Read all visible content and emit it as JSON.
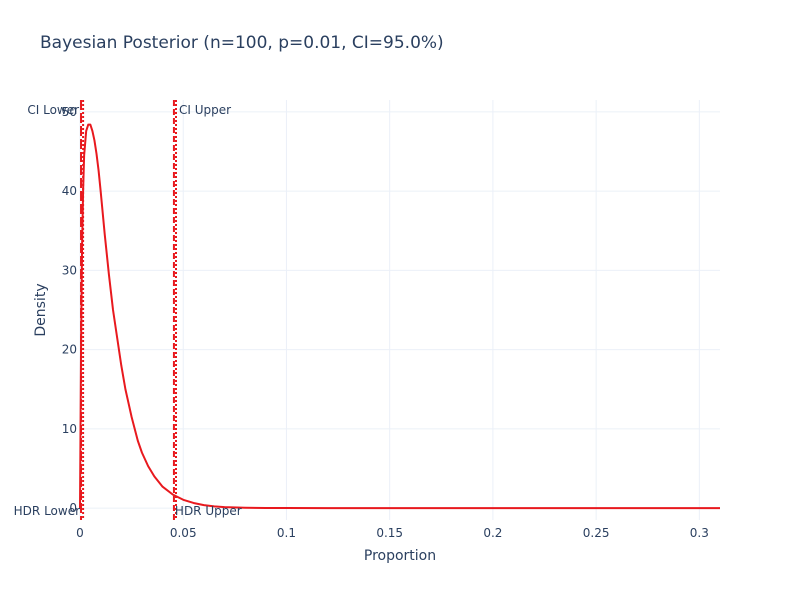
{
  "chart_data": {
    "type": "line",
    "title": "Bayesian Posterior (n=100, p=0.01, CI=95.0%)",
    "xlabel": "Proportion",
    "ylabel": "Density",
    "xlim": [
      0,
      0.31
    ],
    "ylim": [
      -1.5,
      51.5
    ],
    "x_ticks": [
      0,
      0.05,
      0.1,
      0.15,
      0.2,
      0.25,
      0.3
    ],
    "x_tick_labels": [
      "0",
      "0.05",
      "0.1",
      "0.15",
      "0.2",
      "0.25",
      "0.3"
    ],
    "y_ticks": [
      0,
      10,
      20,
      30,
      40,
      50
    ],
    "y_tick_labels": [
      "0",
      "10",
      "20",
      "30",
      "40",
      "50"
    ],
    "grid": true,
    "legend": "none",
    "colors": {
      "curve": "#e8191e",
      "vline": "#e8191e",
      "grid": "#ebf0f8",
      "text": "#2a3f5f"
    },
    "series": [
      {
        "x": [
          0,
          0.0005,
          0.001,
          0.0015,
          0.002,
          0.003,
          0.004,
          0.005,
          0.006,
          0.007,
          0.008,
          0.009,
          0.01,
          0.012,
          0.014,
          0.016,
          0.018,
          0.02,
          0.022,
          0.025,
          0.028,
          0.03,
          0.033,
          0.036,
          0.04,
          0.045,
          0.05,
          0.055,
          0.06,
          0.065,
          0.07,
          0.08,
          0.09,
          0.1,
          0.12,
          0.15,
          0.2,
          0.25,
          0.3,
          0.31
        ],
        "values": [
          0,
          20.0,
          33.0,
          40.0,
          44.5,
          47.6,
          48.4,
          48.4,
          47.6,
          46.4,
          44.7,
          42.6,
          40.0,
          34.5,
          29.5,
          25.0,
          21.5,
          18.0,
          15.0,
          11.5,
          8.5,
          7.0,
          5.3,
          4.0,
          2.7,
          1.7,
          1.05,
          0.65,
          0.38,
          0.22,
          0.13,
          0.05,
          0.02,
          0.01,
          0,
          0,
          0,
          0,
          0,
          0
        ]
      }
    ],
    "vlines": [
      {
        "x": 0.0005,
        "dash": "solid-dash"
      },
      {
        "x": 0.0015,
        "dash": "dot"
      },
      {
        "x": 0.0455,
        "dash": "dash"
      },
      {
        "x": 0.0465,
        "dash": "dot"
      }
    ],
    "annotations": [
      {
        "text": "CI Lower",
        "x": 0.001,
        "pos": "top-left"
      },
      {
        "text": "CI Upper",
        "x": 0.0465,
        "pos": "top-right"
      },
      {
        "text": "HDR Lower",
        "x": 0.0005,
        "pos": "bottom-left"
      },
      {
        "text": "HDR Upper",
        "x": 0.0455,
        "pos": "bottom-right"
      }
    ]
  }
}
